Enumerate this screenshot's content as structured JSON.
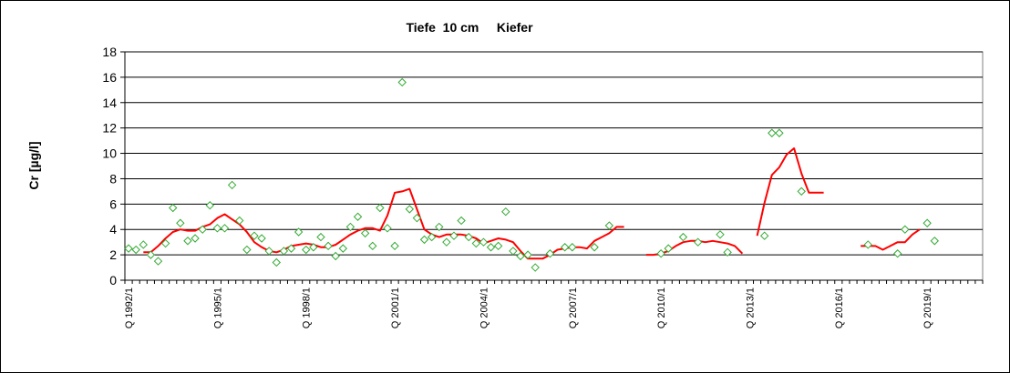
{
  "chart_data": {
    "type": "line",
    "title": "Tiefe  10 cm     Kiefer",
    "ylabel": "Cr [µg/l]",
    "xlabel": "",
    "ylim": [
      0,
      18
    ],
    "yticks": [
      0,
      2,
      4,
      6,
      8,
      10,
      12,
      14,
      16,
      18
    ],
    "grid": true,
    "x_tick_labels": [
      "Q 1992/1",
      "Q 1995/1",
      "Q 1998/1",
      "Q 2001/1",
      "Q 2004/1",
      "Q 2007/1",
      "Q 2010/1",
      "Q 2013/1",
      "Q 2016/1",
      "Q 2019/1"
    ],
    "x_range": [
      "Q 1992/1",
      "Q 2020/4"
    ],
    "colors": {
      "line": "#ff0000",
      "points": "#33aa33"
    },
    "series": [
      {
        "type": "scatter",
        "marker": "diamond",
        "points": [
          [
            "1992/1",
            2.5
          ],
          [
            "1992/2",
            2.4
          ],
          [
            "1992/3",
            2.8
          ],
          [
            "1992/4",
            2.0
          ],
          [
            "1993/1",
            1.5
          ],
          [
            "1993/2",
            2.9
          ],
          [
            "1993/3",
            5.7
          ],
          [
            "1993/4",
            4.5
          ],
          [
            "1994/1",
            3.1
          ],
          [
            "1994/2",
            3.3
          ],
          [
            "1994/3",
            4.0
          ],
          [
            "1994/4",
            5.9
          ],
          [
            "1995/1",
            4.1
          ],
          [
            "1995/2",
            4.1
          ],
          [
            "1995/3",
            7.5
          ],
          [
            "1995/4",
            4.7
          ],
          [
            "1996/1",
            2.4
          ],
          [
            "1996/2",
            3.5
          ],
          [
            "1996/3",
            3.3
          ],
          [
            "1996/4",
            2.3
          ],
          [
            "1997/1",
            1.4
          ],
          [
            "1997/2",
            2.3
          ],
          [
            "1997/3",
            2.5
          ],
          [
            "1997/4",
            3.8
          ],
          [
            "1998/1",
            2.4
          ],
          [
            "1998/2",
            2.6
          ],
          [
            "1998/3",
            3.4
          ],
          [
            "1998/4",
            2.7
          ],
          [
            "1999/1",
            1.9
          ],
          [
            "1999/2",
            2.5
          ],
          [
            "1999/3",
            4.2
          ],
          [
            "1999/4",
            5.0
          ],
          [
            "2000/1",
            3.7
          ],
          [
            "2000/2",
            2.7
          ],
          [
            "2000/3",
            5.7
          ],
          [
            "2000/4",
            4.1
          ],
          [
            "2001/1",
            2.7
          ],
          [
            "2001/2",
            15.6
          ],
          [
            "2001/3",
            5.6
          ],
          [
            "2001/4",
            4.9
          ],
          [
            "2002/1",
            3.2
          ],
          [
            "2002/2",
            3.4
          ],
          [
            "2002/3",
            4.2
          ],
          [
            "2002/4",
            3.0
          ],
          [
            "2003/1",
            3.5
          ],
          [
            "2003/2",
            4.7
          ],
          [
            "2003/3",
            3.4
          ],
          [
            "2003/4",
            2.9
          ],
          [
            "2004/1",
            3.0
          ],
          [
            "2004/2",
            2.6
          ],
          [
            "2004/3",
            2.7
          ],
          [
            "2004/4",
            5.4
          ],
          [
            "2005/1",
            2.3
          ],
          [
            "2005/2",
            1.9
          ],
          [
            "2005/3",
            2.0
          ],
          [
            "2005/4",
            1.0
          ],
          [
            "2006/2",
            2.1
          ],
          [
            "2006/4",
            2.6
          ],
          [
            "2007/1",
            2.6
          ],
          [
            "2007/4",
            2.6
          ],
          [
            "2008/2",
            4.3
          ],
          [
            "2010/1",
            2.1
          ],
          [
            "2010/2",
            2.5
          ],
          [
            "2010/4",
            3.4
          ],
          [
            "2011/2",
            3.0
          ],
          [
            "2012/1",
            3.6
          ],
          [
            "2012/2",
            2.2
          ],
          [
            "2013/3",
            3.5
          ],
          [
            "2013/4",
            11.6
          ],
          [
            "2014/1",
            11.6
          ],
          [
            "2014/4",
            7.0
          ],
          [
            "2017/1",
            2.8
          ],
          [
            "2018/1",
            2.1
          ],
          [
            "2018/2",
            4.0
          ],
          [
            "2019/1",
            4.5
          ],
          [
            "2019/2",
            3.1
          ]
        ]
      },
      {
        "type": "line",
        "segments": [
          [
            [
              "1992/3",
              2.2
            ],
            [
              "1992/4",
              2.2
            ],
            [
              "1993/1",
              2.7
            ],
            [
              "1993/2",
              3.3
            ],
            [
              "1993/3",
              3.8
            ],
            [
              "1993/4",
              4.0
            ],
            [
              "1994/1",
              3.9
            ],
            [
              "1994/2",
              3.9
            ],
            [
              "1994/3",
              4.2
            ],
            [
              "1994/4",
              4.4
            ],
            [
              "1995/1",
              4.9
            ],
            [
              "1995/2",
              5.2
            ],
            [
              "1995/3",
              4.8
            ],
            [
              "1995/4",
              4.4
            ],
            [
              "1996/1",
              3.8
            ],
            [
              "1996/2",
              3.0
            ],
            [
              "1996/3",
              2.6
            ],
            [
              "1996/4",
              2.3
            ],
            [
              "1997/1",
              2.2
            ],
            [
              "1997/2",
              2.4
            ],
            [
              "1997/3",
              2.7
            ],
            [
              "1997/4",
              2.8
            ],
            [
              "1998/1",
              2.9
            ],
            [
              "1998/2",
              2.8
            ],
            [
              "1998/3",
              2.6
            ],
            [
              "1998/4",
              2.6
            ],
            [
              "1999/1",
              2.8
            ],
            [
              "1999/2",
              3.2
            ],
            [
              "1999/3",
              3.6
            ],
            [
              "1999/4",
              3.9
            ],
            [
              "2000/1",
              4.1
            ],
            [
              "2000/2",
              4.1
            ],
            [
              "2000/3",
              3.9
            ],
            [
              "2000/4",
              5.1
            ],
            [
              "2001/1",
              6.9
            ],
            [
              "2001/2",
              7.0
            ],
            [
              "2001/3",
              7.2
            ],
            [
              "2001/4",
              5.6
            ],
            [
              "2002/1",
              4.0
            ],
            [
              "2002/2",
              3.6
            ],
            [
              "2002/3",
              3.4
            ],
            [
              "2002/4",
              3.6
            ],
            [
              "2003/1",
              3.6
            ],
            [
              "2003/2",
              3.6
            ],
            [
              "2003/3",
              3.5
            ],
            [
              "2003/4",
              3.3
            ],
            [
              "2004/1",
              2.9
            ],
            [
              "2004/2",
              3.1
            ],
            [
              "2004/3",
              3.3
            ],
            [
              "2004/4",
              3.2
            ],
            [
              "2005/1",
              3.0
            ],
            [
              "2005/2",
              2.3
            ],
            [
              "2005/3",
              1.7
            ],
            [
              "2005/4",
              1.7
            ],
            [
              "2006/1",
              1.7
            ],
            [
              "2006/2",
              2.0
            ],
            [
              "2006/3",
              2.4
            ],
            [
              "2006/4",
              2.5
            ],
            [
              "2007/1",
              2.6
            ],
            [
              "2007/2",
              2.6
            ],
            [
              "2007/3",
              2.5
            ],
            [
              "2007/4",
              3.1
            ],
            [
              "2008/1",
              3.4
            ],
            [
              "2008/2",
              3.7
            ],
            [
              "2008/3",
              4.2
            ],
            [
              "2008/4",
              4.2
            ]
          ],
          [
            [
              "2009/3",
              2.0
            ],
            [
              "2009/4",
              2.0
            ],
            [
              "2010/1",
              2.1
            ],
            [
              "2010/2",
              2.3
            ],
            [
              "2010/3",
              2.7
            ],
            [
              "2010/4",
              3.0
            ],
            [
              "2011/1",
              3.1
            ],
            [
              "2011/2",
              3.1
            ],
            [
              "2011/3",
              3.0
            ],
            [
              "2011/4",
              3.1
            ],
            [
              "2012/1",
              3.0
            ],
            [
              "2012/2",
              2.9
            ],
            [
              "2012/3",
              2.7
            ],
            [
              "2012/4",
              2.1
            ]
          ],
          [
            [
              "2013/2",
              3.5
            ],
            [
              "2013/3",
              6.1
            ],
            [
              "2013/4",
              8.3
            ],
            [
              "2014/1",
              8.9
            ],
            [
              "2014/2",
              9.9
            ],
            [
              "2014/3",
              10.4
            ],
            [
              "2014/4",
              8.4
            ],
            [
              "2015/1",
              6.9
            ],
            [
              "2015/2",
              6.9
            ],
            [
              "2015/3",
              6.9
            ]
          ],
          [
            [
              "2016/4",
              2.7
            ],
            [
              "2017/1",
              2.7
            ],
            [
              "2017/2",
              2.7
            ],
            [
              "2017/3",
              2.4
            ],
            [
              "2017/4",
              2.7
            ],
            [
              "2018/1",
              3.0
            ],
            [
              "2018/2",
              3.0
            ],
            [
              "2018/3",
              3.6
            ],
            [
              "2018/4",
              4.0
            ]
          ]
        ]
      }
    ]
  }
}
